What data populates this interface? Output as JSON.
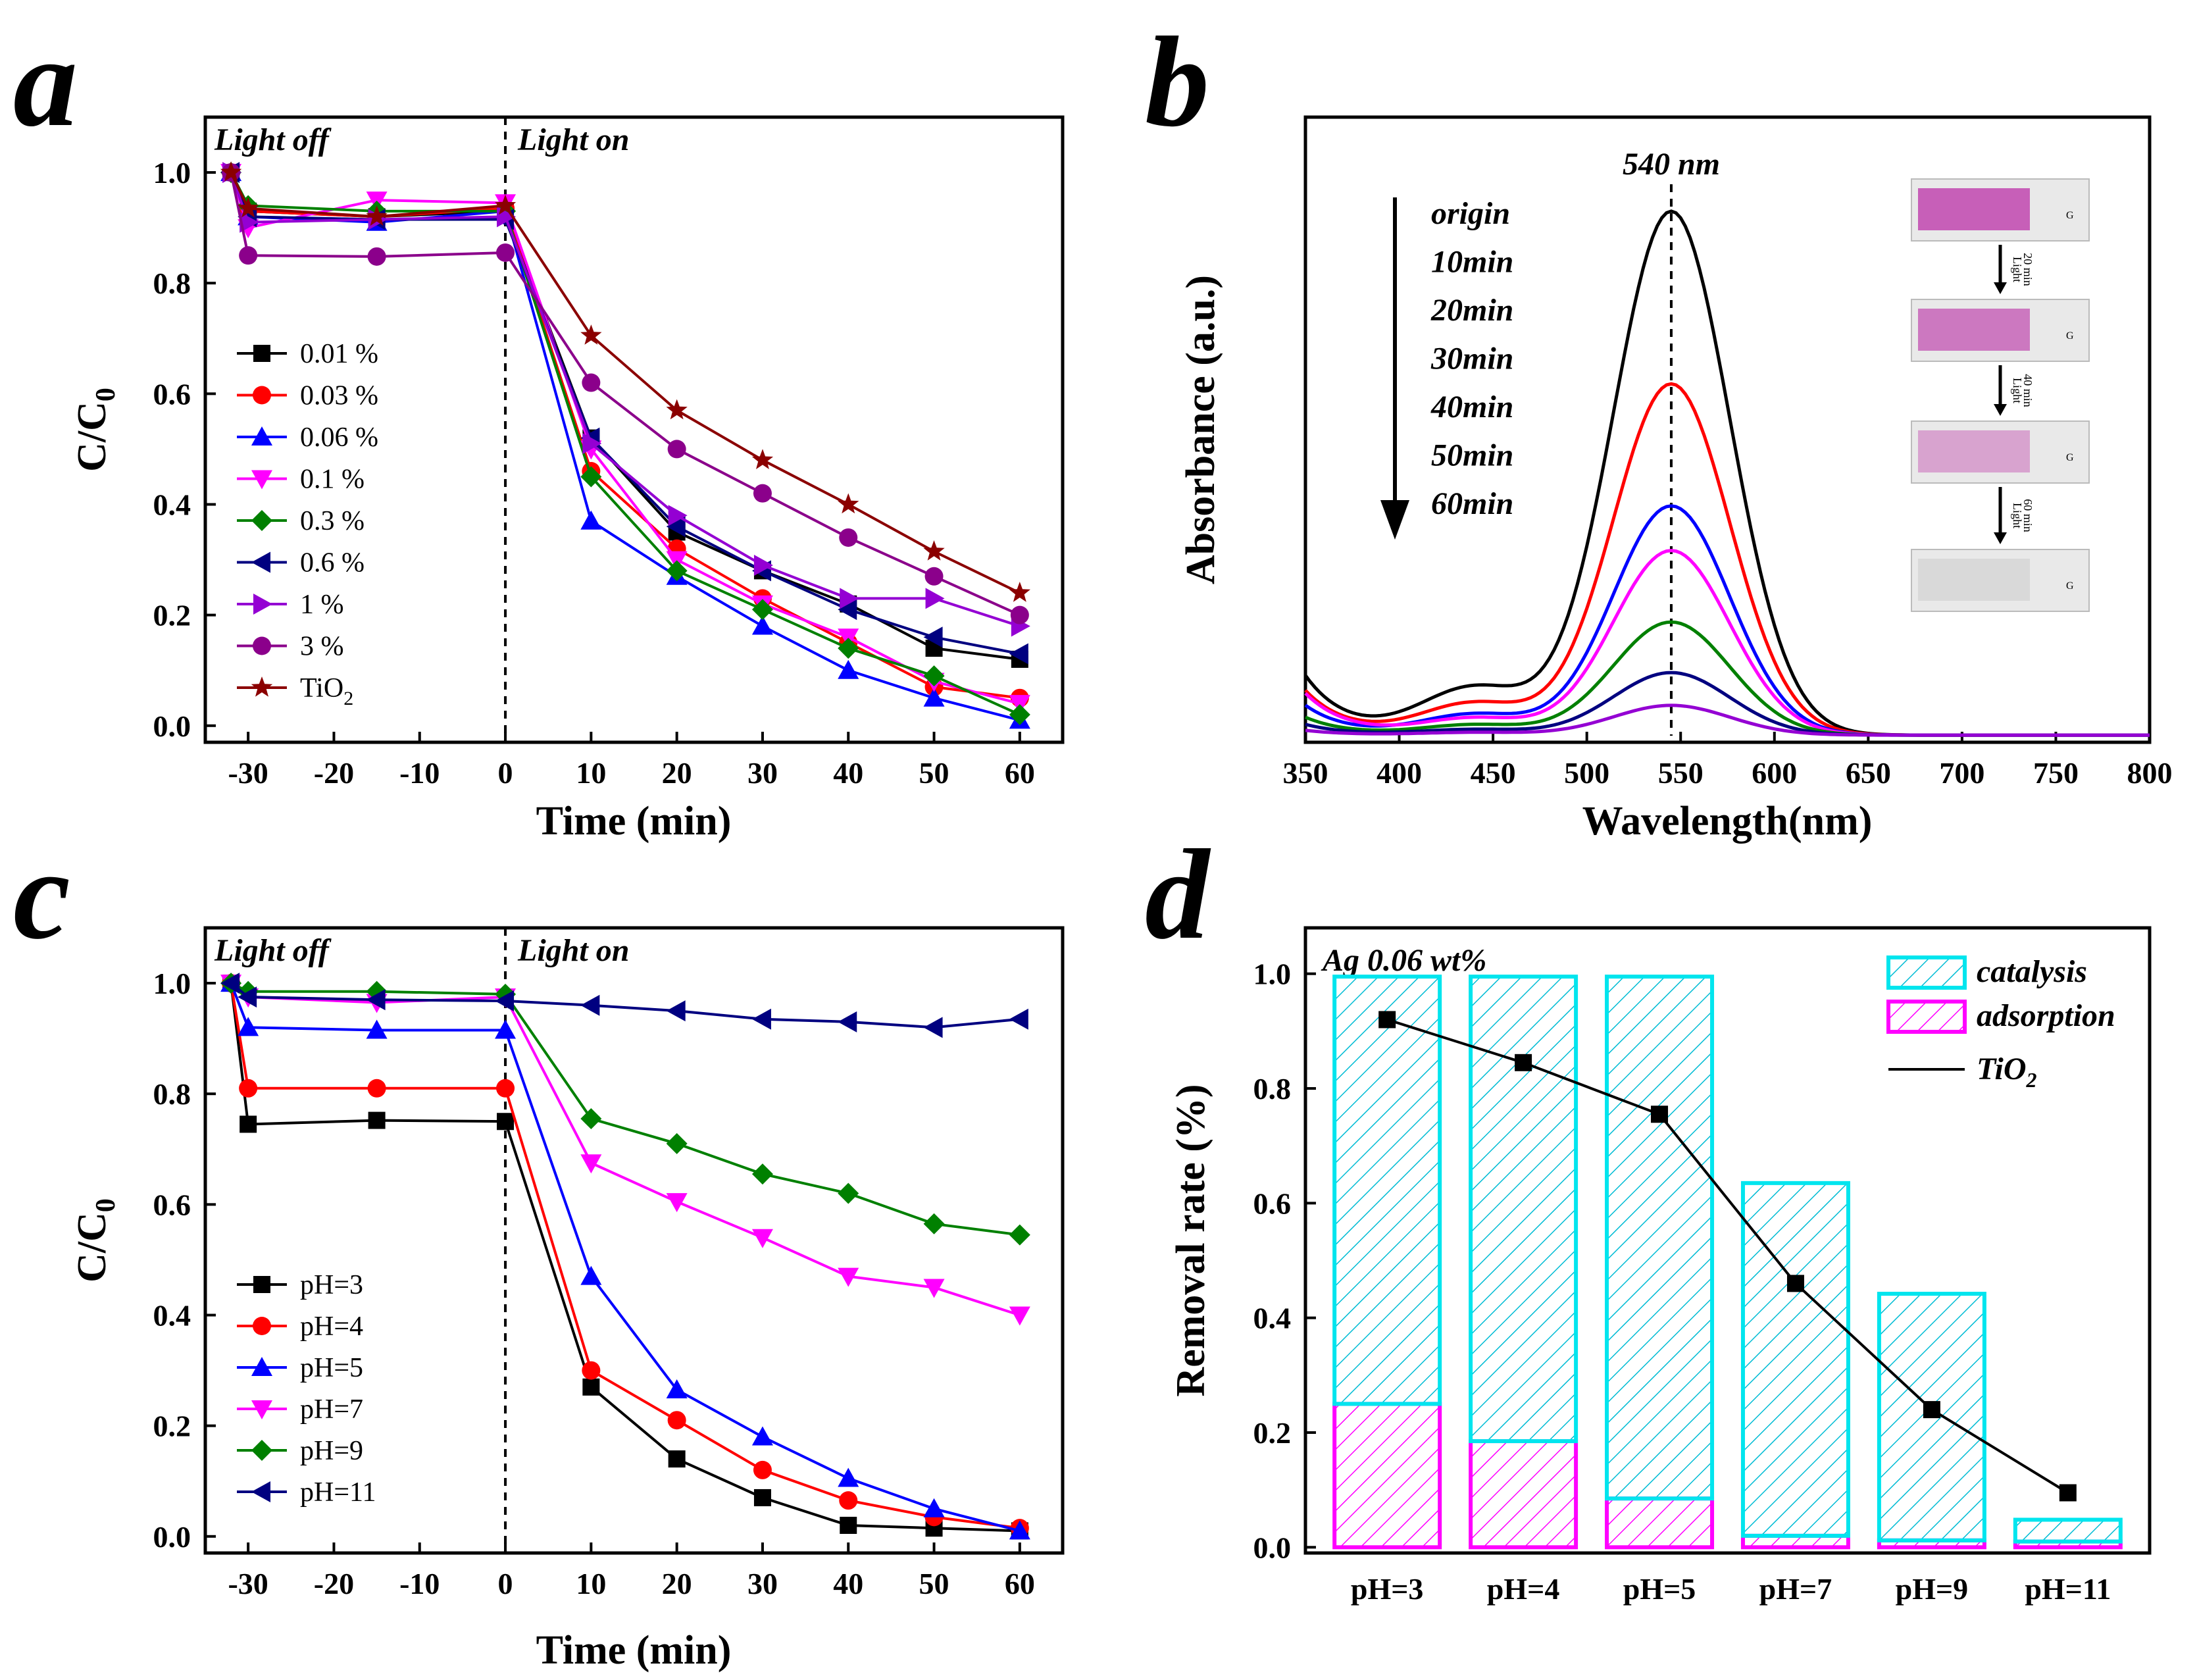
{
  "chart_data": [
    {
      "id": "a",
      "type": "line",
      "panel_label": "a",
      "xlabel": "Time (min)",
      "ylabel": "C/C",
      "ylabel_sub": "0",
      "xlim": [
        -35,
        65
      ],
      "ylim": [
        -0.03,
        1.1
      ],
      "xticks": [
        -30,
        -20,
        -10,
        0,
        10,
        20,
        30,
        40,
        50,
        60
      ],
      "yticks": [
        0.0,
        0.2,
        0.4,
        0.6,
        0.8,
        1.0
      ],
      "annotations": [
        "Light off",
        "Light on"
      ],
      "divider_x": 0,
      "x": [
        -32,
        -30,
        -15,
        0,
        10,
        20,
        30,
        40,
        50,
        60
      ],
      "series": [
        {
          "name": "0.01 %",
          "color": "#000000",
          "marker": "square",
          "values": [
            1.0,
            0.93,
            0.92,
            0.93,
            0.52,
            0.35,
            0.28,
            0.22,
            0.14,
            0.12
          ]
        },
        {
          "name": "0.03 %",
          "color": "#ff0000",
          "marker": "circle",
          "values": [
            1.0,
            0.93,
            0.92,
            0.935,
            0.46,
            0.32,
            0.23,
            0.15,
            0.07,
            0.05
          ]
        },
        {
          "name": "0.06 %",
          "color": "#0000ff",
          "marker": "triangle-up",
          "values": [
            1.0,
            0.92,
            0.91,
            0.93,
            0.37,
            0.27,
            0.18,
            0.1,
            0.05,
            0.01
          ]
        },
        {
          "name": "0.1 %",
          "color": "#ff00ff",
          "marker": "triangle-down",
          "values": [
            1.0,
            0.9,
            0.95,
            0.945,
            0.5,
            0.3,
            0.22,
            0.16,
            0.08,
            0.04
          ]
        },
        {
          "name": "0.3 %",
          "color": "#008000",
          "marker": "diamond",
          "values": [
            1.0,
            0.94,
            0.93,
            0.93,
            0.45,
            0.28,
            0.21,
            0.14,
            0.09,
            0.02
          ]
        },
        {
          "name": "0.6 %",
          "color": "#000080",
          "marker": "triangle-left",
          "values": [
            1.0,
            0.92,
            0.915,
            0.915,
            0.52,
            0.36,
            0.28,
            0.21,
            0.16,
            0.13
          ]
        },
        {
          "name": "1 %",
          "color": "#9400d3",
          "marker": "triangle-right",
          "values": [
            1.0,
            0.91,
            0.915,
            0.92,
            0.51,
            0.38,
            0.29,
            0.23,
            0.23,
            0.18
          ]
        },
        {
          "name": "3 %",
          "color": "#8b008b",
          "marker": "circle",
          "values": [
            1.0,
            0.85,
            0.848,
            0.855,
            0.62,
            0.5,
            0.42,
            0.34,
            0.27,
            0.2
          ]
        },
        {
          "name": "TiO",
          "sub": "2",
          "color": "#8b0000",
          "marker": "star",
          "values": [
            1.0,
            0.935,
            0.92,
            0.94,
            0.705,
            0.57,
            0.48,
            0.4,
            0.315,
            0.24
          ]
        }
      ]
    },
    {
      "id": "b",
      "type": "line",
      "panel_label": "b",
      "xlabel": "Wavelength(nm)",
      "ylabel": "Absorbance (a.u.)",
      "xlim": [
        350,
        800
      ],
      "ylim": [
        0,
        1.05
      ],
      "xticks": [
        350,
        400,
        450,
        500,
        550,
        600,
        650,
        700,
        750,
        800
      ],
      "peak_label": "540 nm",
      "peak_x": 545,
      "arrow_labels": [
        "origin",
        "10min",
        "20min",
        "30min",
        "40min",
        "50min",
        "60min"
      ],
      "inset_labels": [
        "Light\n20 min",
        "Light\n40 min",
        "Light\n60 min"
      ],
      "inset_colors": [
        "#c75fb8",
        "#cc78c0",
        "#d8a3cf",
        "#d9d9d9"
      ],
      "series": [
        {
          "name": "origin",
          "color": "#000000",
          "peak": 0.88,
          "base": 0.1
        },
        {
          "name": "10min",
          "color": "#ff0000",
          "peak": 0.59,
          "base": 0.075
        },
        {
          "name": "20min",
          "color": "#0000ff",
          "peak": 0.385,
          "base": 0.05
        },
        {
          "name": "30min",
          "color": "#ff00ff",
          "peak": 0.31,
          "base": 0.07
        },
        {
          "name": "40min",
          "color": "#008000",
          "peak": 0.19,
          "base": 0.03
        },
        {
          "name": "50min",
          "color": "#000080",
          "peak": 0.105,
          "base": 0.018
        },
        {
          "name": "60min",
          "color": "#9400d3",
          "peak": 0.05,
          "base": 0.008
        }
      ]
    },
    {
      "id": "c",
      "type": "line",
      "panel_label": "c",
      "xlabel": "Time (min)",
      "ylabel": "C/C",
      "ylabel_sub": "0",
      "xlim": [
        -35,
        65
      ],
      "ylim": [
        -0.03,
        1.1
      ],
      "xticks": [
        -30,
        -20,
        -10,
        0,
        10,
        20,
        30,
        40,
        50,
        60
      ],
      "yticks": [
        0.0,
        0.2,
        0.4,
        0.6,
        0.8,
        1.0
      ],
      "annotations": [
        "Light off",
        "Light on"
      ],
      "divider_x": 0,
      "x": [
        -32,
        -30,
        -15,
        0,
        10,
        20,
        30,
        40,
        50,
        60
      ],
      "series": [
        {
          "name": "pH=3",
          "color": "#000000",
          "marker": "square",
          "values": [
            1.0,
            0.745,
            0.752,
            0.75,
            0.27,
            0.14,
            0.07,
            0.02,
            0.015,
            0.01
          ]
        },
        {
          "name": "pH=4",
          "color": "#ff0000",
          "marker": "circle",
          "values": [
            1.0,
            0.81,
            0.81,
            0.81,
            0.3,
            0.21,
            0.12,
            0.065,
            0.035,
            0.015
          ]
        },
        {
          "name": "pH=5",
          "color": "#0000ff",
          "marker": "triangle-up",
          "values": [
            1.0,
            0.92,
            0.915,
            0.915,
            0.47,
            0.265,
            0.18,
            0.105,
            0.05,
            0.01
          ]
        },
        {
          "name": "pH=7",
          "color": "#ff00ff",
          "marker": "triangle-down",
          "values": [
            1.0,
            0.975,
            0.965,
            0.975,
            0.675,
            0.605,
            0.54,
            0.47,
            0.45,
            0.4
          ]
        },
        {
          "name": "pH=9",
          "color": "#008000",
          "marker": "diamond",
          "values": [
            1.0,
            0.985,
            0.985,
            0.98,
            0.755,
            0.71,
            0.655,
            0.62,
            0.565,
            0.545
          ]
        },
        {
          "name": "pH=11",
          "color": "#000080",
          "marker": "triangle-left",
          "values": [
            1.0,
            0.975,
            0.97,
            0.968,
            0.96,
            0.95,
            0.935,
            0.93,
            0.92,
            0.935
          ]
        }
      ]
    },
    {
      "id": "d",
      "type": "bar",
      "panel_label": "d",
      "stacked": true,
      "xlabel": "",
      "ylabel": "Removal rate (%)",
      "ylim": [
        -0.01,
        1.08
      ],
      "yticks": [
        0.0,
        0.2,
        0.4,
        0.6,
        0.8,
        1.0
      ],
      "annotation": "Ag 0.06 wt%",
      "categories": [
        "pH=3",
        "pH=4",
        "pH=5",
        "pH=7",
        "pH=9",
        "pH=11"
      ],
      "series": [
        {
          "name": "adsorption",
          "color": "#ff00ff",
          "values": [
            0.25,
            0.185,
            0.085,
            0.02,
            0.012,
            0.01
          ]
        },
        {
          "name": "catalysis",
          "color": "#00e5ee",
          "values": [
            0.745,
            0.81,
            0.91,
            0.615,
            0.43,
            0.038
          ]
        },
        {
          "name": "TiO",
          "sub": "2",
          "color": "#000000",
          "type": "line",
          "values": [
            0.92,
            0.845,
            0.755,
            0.46,
            0.24,
            0.095
          ]
        }
      ]
    }
  ]
}
